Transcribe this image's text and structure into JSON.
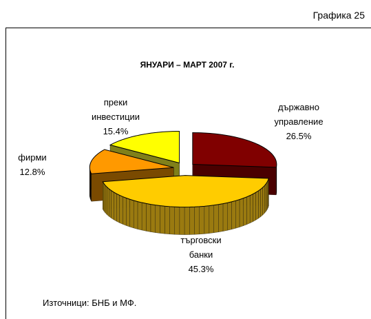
{
  "page_label": "Графика 25",
  "source": "Източници: БНБ и МФ.",
  "chart_data": {
    "type": "pie",
    "title": "ЯНУАРИ – МАРТ 2007 г.",
    "categories": [
      "държавно\nуправление",
      "търговски\nбанки",
      "фирми",
      "преки\nинвестиции"
    ],
    "values": [
      26.5,
      45.3,
      12.8,
      15.4
    ],
    "value_labels": [
      "26.5%",
      "45.3%",
      "12.8%",
      "15.4%"
    ],
    "colors": [
      "#800000",
      "#ffcc00",
      "#ff9900",
      "#ffff00"
    ],
    "side_colors": [
      "#4a0000",
      "#9a7a10",
      "#7a4a00",
      "#80801a"
    ]
  }
}
